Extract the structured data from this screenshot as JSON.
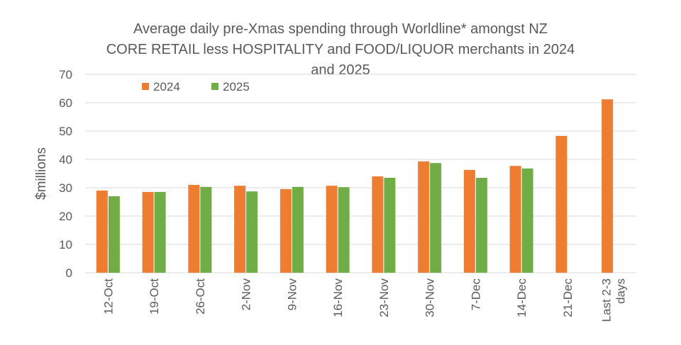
{
  "chart_data": {
    "type": "bar",
    "title_lines": [
      "Average daily pre-Xmas spending through Worldline* amongst NZ",
      "CORE RETAIL less HOSPITALITY and FOOD/LIQUOR merchants in 2024",
      "and 2025"
    ],
    "xlabel": "",
    "ylabel": "$millions",
    "ylim": [
      0,
      70
    ],
    "yticks": [
      0,
      10,
      20,
      30,
      40,
      50,
      60,
      70
    ],
    "grid": true,
    "legend_position": "top-left",
    "categories": [
      [
        "12-Oct"
      ],
      [
        "19-Oct"
      ],
      [
        "26-Oct"
      ],
      [
        "2-Nov"
      ],
      [
        "9-Nov"
      ],
      [
        "16-Nov"
      ],
      [
        "23-Nov"
      ],
      [
        "30-Nov"
      ],
      [
        "7-Dec"
      ],
      [
        "14-Dec"
      ],
      [
        "21-Dec"
      ],
      [
        "Last 2-3",
        "days"
      ]
    ],
    "series": [
      {
        "name": "2024",
        "color": "#ED7D31",
        "values": [
          29,
          28.5,
          31,
          30.7,
          29.5,
          30.7,
          34,
          39.3,
          36.3,
          37.7,
          48.3,
          61.2
        ]
      },
      {
        "name": "2025",
        "color": "#70AD47",
        "values": [
          27,
          28.5,
          30.3,
          28.7,
          30.3,
          30.2,
          33.5,
          38.7,
          33.5,
          36.8,
          null,
          null
        ]
      }
    ]
  }
}
